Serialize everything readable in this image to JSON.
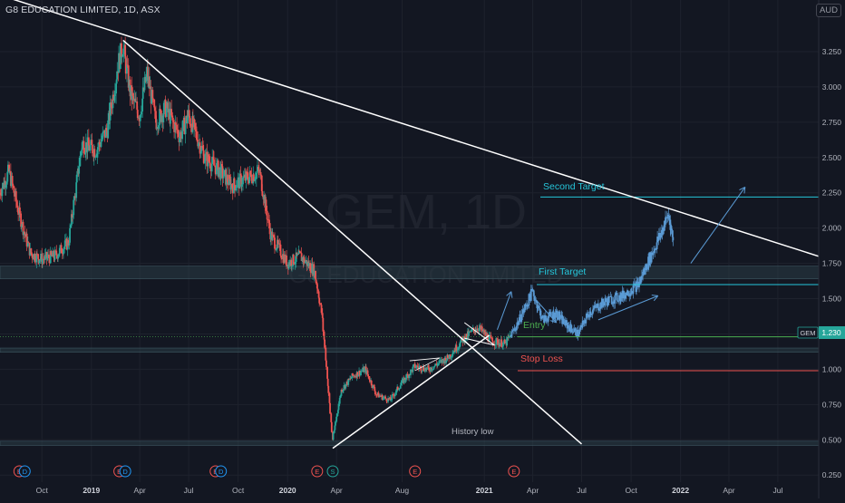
{
  "header": {
    "title": "G8 EDUCATION LIMITED, 1D, ASX",
    "currency": "AUD"
  },
  "watermark": {
    "symbol": "GEM, 1D",
    "name": "G8 EDUCATION LIMITED"
  },
  "price_badge": {
    "symbol": "GEM",
    "value": "1.230"
  },
  "colors": {
    "background": "#131722",
    "up": "#26a69a",
    "down": "#ef5350",
    "trendline": "#ffffff",
    "target": "#26c6da",
    "entry": "#4caf50",
    "stop": "#ef5350",
    "projection": "#5b9bd5",
    "zone": "#2a3c45",
    "earnings": "#ef5350",
    "dividend": "#2196f3",
    "split": "#26a69a"
  },
  "annotations": {
    "second_target": "Second Target",
    "first_target": "First Target",
    "entry": "Entry",
    "stop_loss": "Stop Loss",
    "history_low": "History low"
  },
  "events": [
    {
      "label": "E",
      "kind": "earnings",
      "date": "2018-08-20"
    },
    {
      "label": "D",
      "kind": "dividend",
      "date": "2018-08-30"
    },
    {
      "label": "E",
      "kind": "earnings",
      "date": "2019-02-22"
    },
    {
      "label": "D",
      "kind": "dividend",
      "date": "2019-03-05"
    },
    {
      "label": "E",
      "kind": "earnings",
      "date": "2019-08-20"
    },
    {
      "label": "D",
      "kind": "dividend",
      "date": "2019-08-30"
    },
    {
      "label": "E",
      "kind": "earnings",
      "date": "2020-02-25"
    },
    {
      "label": "S",
      "kind": "split",
      "date": "2020-03-25"
    },
    {
      "label": "E",
      "kind": "earnings",
      "date": "2020-08-25"
    },
    {
      "label": "E",
      "kind": "earnings",
      "date": "2021-02-25"
    }
  ],
  "chart_data": {
    "type": "candlestick",
    "title": "G8 EDUCATION LIMITED, 1D, ASX",
    "x_range": [
      "2018-07-15",
      "2022-09-15"
    ],
    "ylim": [
      0.2,
      3.5
    ],
    "y_ticks": [
      "0.250",
      "0.500",
      "0.750",
      "1.000",
      "1.250",
      "1.500",
      "1.750",
      "2.000",
      "2.250",
      "2.500",
      "2.750",
      "3.000",
      "3.250"
    ],
    "x_ticks": [
      {
        "label": "Oct",
        "date": "2018-10-01"
      },
      {
        "label": "2019",
        "date": "2019-01-01"
      },
      {
        "label": "Apr",
        "date": "2019-04-01"
      },
      {
        "label": "Jul",
        "date": "2019-07-01"
      },
      {
        "label": "Oct",
        "date": "2019-10-01"
      },
      {
        "label": "2020",
        "date": "2020-01-01"
      },
      {
        "label": "Apr",
        "date": "2020-04-01"
      },
      {
        "label": "Aug",
        "date": "2020-08-01"
      },
      {
        "label": "2021",
        "date": "2021-01-01"
      },
      {
        "label": "Apr",
        "date": "2021-04-01"
      },
      {
        "label": "Jul",
        "date": "2021-07-01"
      },
      {
        "label": "Oct",
        "date": "2021-10-01"
      },
      {
        "label": "2022",
        "date": "2022-01-01"
      },
      {
        "label": "Apr",
        "date": "2022-04-01"
      },
      {
        "label": "Jul",
        "date": "2022-07-01"
      }
    ],
    "series": [
      {
        "kind": "price",
        "points": [
          [
            "2018-07-15",
            2.25
          ],
          [
            "2018-08-01",
            2.4
          ],
          [
            "2018-08-20",
            2.1
          ],
          [
            "2018-09-10",
            1.82
          ],
          [
            "2018-10-01",
            1.78
          ],
          [
            "2018-10-25",
            1.8
          ],
          [
            "2018-11-20",
            1.9
          ],
          [
            "2018-12-15",
            2.6
          ],
          [
            "2019-01-10",
            2.55
          ],
          [
            "2019-01-31",
            2.7
          ],
          [
            "2019-02-20",
            3.15
          ],
          [
            "2019-03-01",
            3.3
          ],
          [
            "2019-03-15",
            2.95
          ],
          [
            "2019-04-01",
            2.8
          ],
          [
            "2019-04-15",
            3.1
          ],
          [
            "2019-05-01",
            2.75
          ],
          [
            "2019-05-20",
            2.85
          ],
          [
            "2019-06-15",
            2.65
          ],
          [
            "2019-07-01",
            2.8
          ],
          [
            "2019-08-01",
            2.5
          ],
          [
            "2019-08-30",
            2.4
          ],
          [
            "2019-09-20",
            2.3
          ],
          [
            "2019-10-15",
            2.35
          ],
          [
            "2019-11-10",
            2.4
          ],
          [
            "2019-12-01",
            1.95
          ],
          [
            "2020-01-01",
            1.75
          ],
          [
            "2020-01-25",
            1.8
          ],
          [
            "2020-02-20",
            1.7
          ],
          [
            "2020-03-05",
            1.4
          ],
          [
            "2020-03-25",
            0.5
          ],
          [
            "2020-04-10",
            0.85
          ],
          [
            "2020-05-01",
            0.95
          ],
          [
            "2020-05-25",
            1.0
          ],
          [
            "2020-06-15",
            0.82
          ],
          [
            "2020-07-10",
            0.78
          ],
          [
            "2020-07-31",
            0.9
          ],
          [
            "2020-08-25",
            1.02
          ],
          [
            "2020-09-20",
            1.0
          ],
          [
            "2020-10-25",
            1.08
          ],
          [
            "2020-11-25",
            1.22
          ],
          [
            "2020-12-20",
            1.3
          ],
          [
            "2021-01-15",
            1.2
          ],
          [
            "2021-02-10",
            1.18
          ],
          [
            "2021-03-01",
            1.3
          ],
          [
            "2021-03-20",
            1.45
          ],
          [
            "2021-04-01",
            1.55
          ],
          [
            "2021-04-20",
            1.35
          ],
          [
            "2021-05-15",
            1.4
          ],
          [
            "2021-06-01",
            1.32
          ],
          [
            "2021-06-25",
            1.25
          ],
          [
            "2021-07-15",
            1.4
          ],
          [
            "2021-08-15",
            1.48
          ],
          [
            "2021-09-15",
            1.52
          ],
          [
            "2021-10-15",
            1.6
          ],
          [
            "2021-11-01",
            1.75
          ],
          [
            "2021-11-25",
            1.95
          ],
          [
            "2021-12-10",
            2.1
          ],
          [
            "2021-12-20",
            1.88
          ]
        ]
      }
    ],
    "horizontal_levels": [
      {
        "name": "Second Target",
        "value": 2.22
      },
      {
        "name": "First Target",
        "value": 1.6
      },
      {
        "name": "Entry",
        "value": 1.23
      },
      {
        "name": "Stop Loss",
        "value": 0.99
      }
    ],
    "zones": [
      {
        "from": 1.64,
        "to": 1.73
      },
      {
        "from": 1.12,
        "to": 1.15
      },
      {
        "from": 0.46,
        "to": 0.49
      }
    ],
    "trendlines": [
      {
        "from": [
          "2018-07-15",
          3.65
        ],
        "to": [
          "2022-09-15",
          1.8
        ]
      },
      {
        "from": [
          "2019-03-01",
          3.33
        ],
        "to": [
          "2021-07-01",
          0.47
        ]
      },
      {
        "from": [
          "2020-03-25",
          0.44
        ],
        "to": [
          "2021-01-10",
          1.24
        ]
      }
    ]
  }
}
